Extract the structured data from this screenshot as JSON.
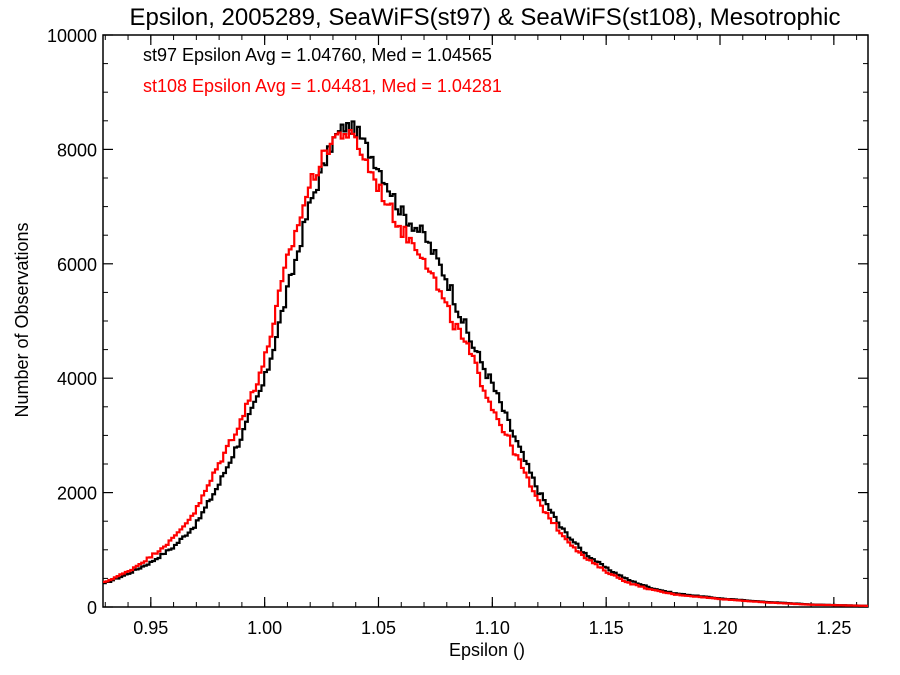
{
  "chart_data": {
    "type": "line",
    "title": "Epsilon, 2005289, SeaWiFS(st97) & SeaWiFS(st108), Mesotrophic",
    "xlabel": "Epsilon ()",
    "ylabel": "Number of Observations",
    "xlim": [
      0.929,
      1.265
    ],
    "ylim": [
      0,
      10000
    ],
    "x_ticks": [
      0.95,
      1.0,
      1.05,
      1.1,
      1.15,
      1.2,
      1.25
    ],
    "x_tick_labels": [
      "0.95",
      "1.00",
      "1.05",
      "1.10",
      "1.15",
      "1.20",
      "1.25"
    ],
    "y_ticks": [
      0,
      2000,
      4000,
      6000,
      8000,
      10000
    ],
    "y_tick_labels": [
      "0",
      "2000",
      "4000",
      "6000",
      "8000",
      "10000"
    ],
    "grid": false,
    "annotations": [
      {
        "text": "st97 Epsilon Avg = 1.04760, Med = 1.04565",
        "color": "#000000"
      },
      {
        "text": "st108 Epsilon Avg = 1.04481, Med = 1.04281",
        "color": "#ff0000"
      }
    ],
    "series": [
      {
        "color": "#000000",
        "x": [
          0.929,
          0.94,
          0.95,
          0.96,
          0.97,
          0.98,
          0.99,
          1.0,
          1.01,
          1.02,
          1.03,
          1.035,
          1.04,
          1.05,
          1.06,
          1.07,
          1.08,
          1.09,
          1.1,
          1.11,
          1.12,
          1.13,
          1.14,
          1.15,
          1.16,
          1.17,
          1.18,
          1.2,
          1.22,
          1.24,
          1.265
        ],
        "y": [
          400,
          580,
          780,
          1050,
          1450,
          2150,
          3000,
          3950,
          5500,
          7050,
          8150,
          8400,
          8350,
          7700,
          6900,
          6500,
          5750,
          4700,
          3900,
          2950,
          2050,
          1400,
          960,
          680,
          470,
          330,
          240,
          150,
          90,
          45,
          20
        ]
      },
      {
        "color": "#ff0000",
        "x": [
          0.929,
          0.94,
          0.95,
          0.96,
          0.97,
          0.98,
          0.99,
          1.0,
          1.01,
          1.02,
          1.03,
          1.035,
          1.04,
          1.05,
          1.06,
          1.07,
          1.08,
          1.09,
          1.1,
          1.11,
          1.12,
          1.13,
          1.14,
          1.15,
          1.16,
          1.17,
          1.18,
          1.2,
          1.22,
          1.24,
          1.265
        ],
        "y": [
          420,
          620,
          880,
          1200,
          1700,
          2500,
          3300,
          4300,
          6050,
          7400,
          8200,
          8300,
          8150,
          7350,
          6600,
          6150,
          5200,
          4450,
          3500,
          2700,
          1850,
          1300,
          880,
          620,
          420,
          300,
          220,
          140,
          80,
          40,
          20
        ]
      }
    ]
  }
}
